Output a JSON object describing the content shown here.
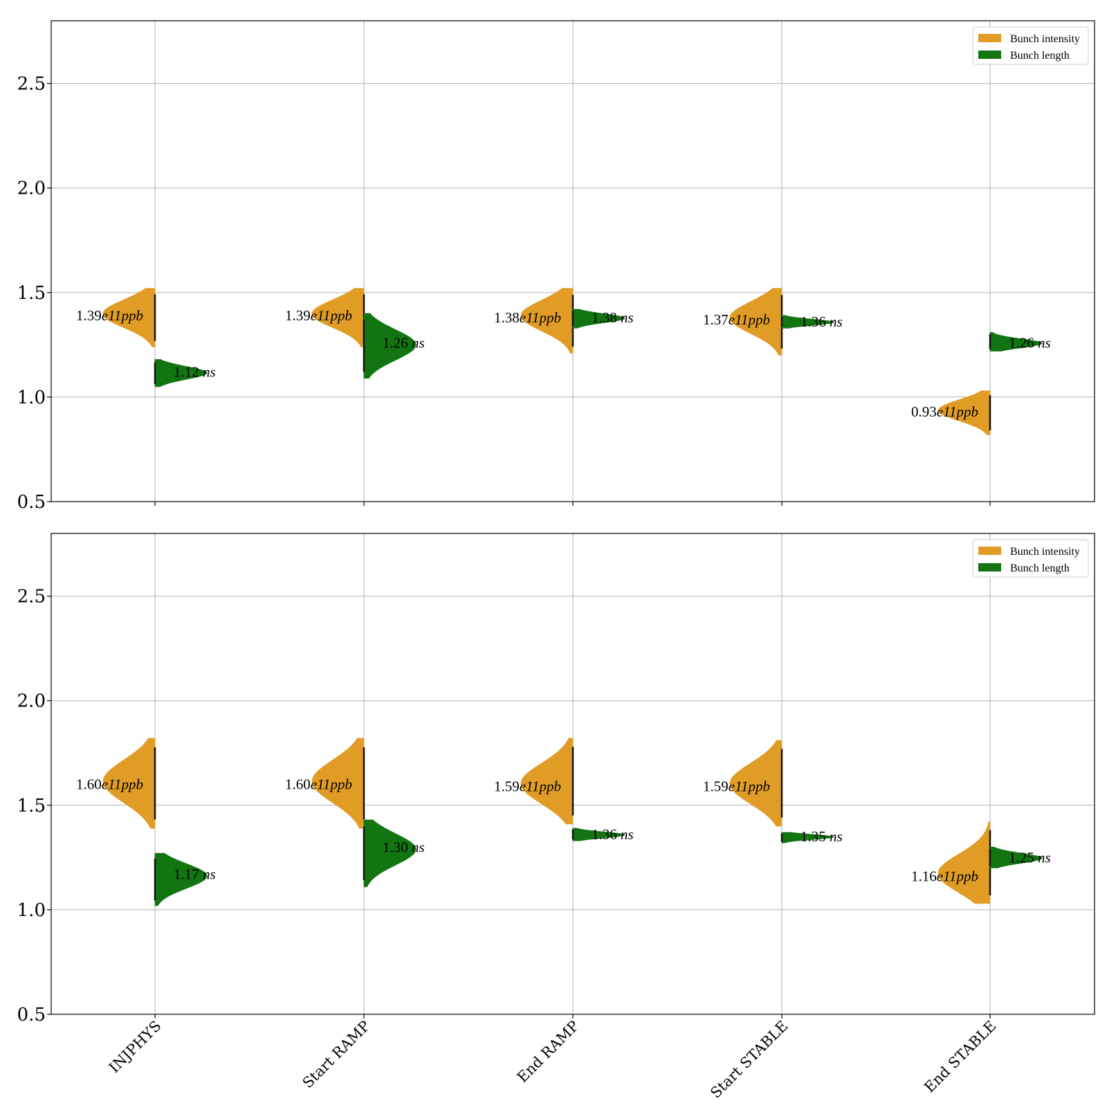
{
  "colors": {
    "intensity": "#e09c25",
    "length": "#137512",
    "grid": "#b0b0b0",
    "axis": "#000000"
  },
  "chart_data": [
    {
      "type": "violin",
      "categories": [
        "INJPHYS",
        "Start RAMP",
        "End RAMP",
        "Start STABLE",
        "End STABLE"
      ],
      "ylim": [
        0.5,
        2.8
      ],
      "yticks": [
        0.5,
        1.0,
        1.5,
        2.0,
        2.5
      ],
      "grid": true,
      "legend": {
        "placement": "top-right",
        "entries": [
          "Bunch intensity",
          "Bunch length"
        ]
      },
      "series": [
        {
          "name": "Bunch intensity",
          "side": "left",
          "values": [
            1.39,
            1.39,
            1.38,
            1.37,
            0.93
          ],
          "ranges": [
            [
              1.24,
              1.52
            ],
            [
              1.24,
              1.52
            ],
            [
              1.21,
              1.52
            ],
            [
              1.2,
              1.52
            ],
            [
              0.82,
              1.03
            ]
          ],
          "labels": [
            "1.39e11ppb",
            "1.39e11ppb",
            "1.38e11ppb",
            "1.37e11ppb",
            "0.93e11ppb"
          ]
        },
        {
          "name": "Bunch length",
          "side": "right",
          "values": [
            1.12,
            1.26,
            1.38,
            1.36,
            1.26
          ],
          "ranges": [
            [
              1.05,
              1.18
            ],
            [
              1.09,
              1.4
            ],
            [
              1.33,
              1.42
            ],
            [
              1.33,
              1.39
            ],
            [
              1.22,
              1.31
            ]
          ],
          "labels": [
            "1.12 ns",
            "1.26 ns",
            "1.38 ns",
            "1.36 ns",
            "1.26 ns"
          ]
        }
      ]
    },
    {
      "type": "violin",
      "categories": [
        "INJPHYS",
        "Start RAMP",
        "End RAMP",
        "Start STABLE",
        "End STABLE"
      ],
      "ylim": [
        0.5,
        2.8
      ],
      "yticks": [
        0.5,
        1.0,
        1.5,
        2.0,
        2.5
      ],
      "grid": true,
      "legend": {
        "placement": "top-right",
        "entries": [
          "Bunch intensity",
          "Bunch length"
        ]
      },
      "series": [
        {
          "name": "Bunch intensity",
          "side": "left",
          "values": [
            1.6,
            1.6,
            1.59,
            1.59,
            1.16
          ],
          "ranges": [
            [
              1.39,
              1.82
            ],
            [
              1.39,
              1.82
            ],
            [
              1.41,
              1.82
            ],
            [
              1.4,
              1.81
            ],
            [
              1.03,
              1.42
            ]
          ],
          "labels": [
            "1.60e11ppb",
            "1.60e11ppb",
            "1.59e11ppb",
            "1.59e11ppb",
            "1.16e11ppb"
          ]
        },
        {
          "name": "Bunch length",
          "side": "right",
          "values": [
            1.17,
            1.3,
            1.36,
            1.35,
            1.25
          ],
          "ranges": [
            [
              1.02,
              1.27
            ],
            [
              1.11,
              1.43
            ],
            [
              1.33,
              1.39
            ],
            [
              1.32,
              1.37
            ],
            [
              1.2,
              1.3
            ]
          ],
          "labels": [
            "1.17 ns",
            "1.30 ns",
            "1.36 ns",
            "1.35 ns",
            "1.25 ns"
          ]
        }
      ]
    }
  ]
}
